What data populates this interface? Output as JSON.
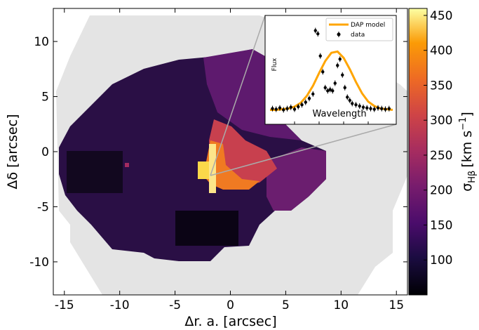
{
  "chart_data": [
    {
      "type": "heatmap",
      "title": "",
      "xlabel": "Δr. a. [arcsec]",
      "ylabel": "Δδ [arcsec]",
      "xlim": [
        -16,
        16
      ],
      "ylim": [
        -13,
        13
      ],
      "xticks": [
        -15,
        -10,
        -5,
        0,
        5,
        10,
        15
      ],
      "xtick_labels": [
        "-15",
        "-10",
        "-5",
        "0",
        "5",
        "10",
        "15"
      ],
      "yticks": [
        -10,
        -5,
        0,
        5,
        10
      ],
      "ytick_labels": [
        "-10",
        "-5",
        "0",
        "5",
        "10"
      ],
      "colorbar": {
        "label": "σHβ [km s−1]",
        "label_main": "σ",
        "label_sub": "Hβ",
        "label_units": "[km s",
        "label_sup": "−1",
        "label_close": "]",
        "range": [
          50,
          460
        ],
        "ticks": [
          100,
          150,
          200,
          250,
          300,
          350,
          400,
          450
        ],
        "tick_labels": [
          "100",
          "150",
          "200",
          "250",
          "300",
          "350",
          "400",
          "450"
        ],
        "colormap": "inferno"
      },
      "field_of_view": "hexagonal, light grey",
      "features": [
        {
          "x": -2,
          "y": -2,
          "sigma": 450,
          "description": "bright yellow core region"
        },
        {
          "x": 0,
          "y": -1,
          "sigma": 290,
          "description": "orange extended region"
        },
        {
          "x": 3,
          "y": 4,
          "sigma": 220,
          "description": "purple northern region"
        },
        {
          "x": -8,
          "y": -3,
          "sigma": 110,
          "description": "dark outer region"
        }
      ]
    },
    {
      "type": "line",
      "title": "",
      "xlabel": "Wavelength",
      "ylabel": "Flux",
      "legend_position": "top-right",
      "series": [
        {
          "name": "DAP model",
          "color": "#FFA500",
          "x": [
            0,
            0.05,
            0.1,
            0.15,
            0.2,
            0.25,
            0.3,
            0.35,
            0.4,
            0.45,
            0.5,
            0.55,
            0.6,
            0.65,
            0.7,
            0.75,
            0.8,
            0.85,
            0.9,
            0.95,
            1.0
          ],
          "y": [
            0.0,
            0.0,
            0.01,
            0.02,
            0.05,
            0.11,
            0.22,
            0.38,
            0.58,
            0.77,
            0.9,
            0.92,
            0.82,
            0.64,
            0.44,
            0.26,
            0.13,
            0.06,
            0.02,
            0.01,
            0.0
          ]
        },
        {
          "name": "data",
          "color": "#000000",
          "x": [
            0.02,
            0.05,
            0.08,
            0.11,
            0.14,
            0.17,
            0.2,
            0.23,
            0.26,
            0.29,
            0.32,
            0.35,
            0.37,
            0.39,
            0.41,
            0.43,
            0.45,
            0.47,
            0.49,
            0.51,
            0.53,
            0.55,
            0.57,
            0.59,
            0.61,
            0.63,
            0.65,
            0.67,
            0.7,
            0.73,
            0.76,
            0.79,
            0.82,
            0.85,
            0.88,
            0.91,
            0.94,
            0.97
          ],
          "y": [
            0.02,
            0.01,
            0.03,
            0.0,
            0.02,
            0.04,
            0.01,
            0.05,
            0.08,
            0.12,
            0.18,
            0.25,
            1.25,
            1.2,
            0.85,
            0.6,
            0.35,
            0.3,
            0.32,
            0.3,
            0.42,
            0.7,
            0.8,
            0.55,
            0.35,
            0.2,
            0.15,
            0.1,
            0.08,
            0.06,
            0.04,
            0.03,
            0.02,
            0.01,
            0.03,
            0.02,
            0.01,
            0.02
          ]
        }
      ],
      "ylim": [
        -0.15,
        1.4
      ]
    }
  ]
}
